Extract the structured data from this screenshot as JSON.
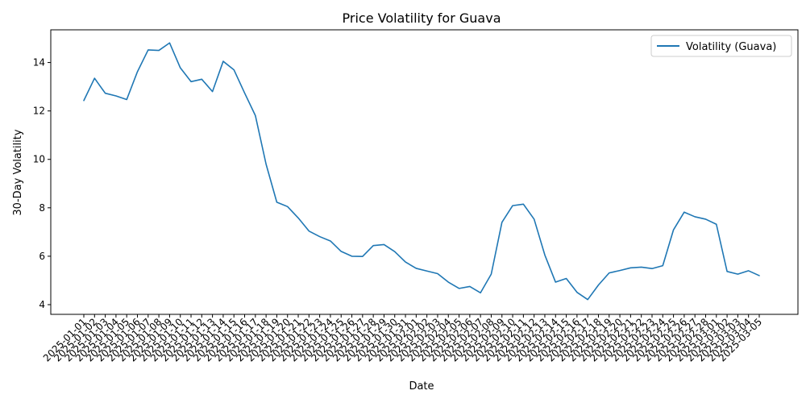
{
  "chart_data": {
    "type": "line",
    "title": "Price Volatility for Guava",
    "xlabel": "Date",
    "ylabel": "30-Day Volatility",
    "ylim": [
      3.6,
      15.35
    ],
    "yticks": [
      4,
      6,
      8,
      10,
      12,
      14
    ],
    "grid": false,
    "legend_position": "top-right",
    "x": [
      "2025-01-01",
      "2025-01-02",
      "2025-01-03",
      "2025-01-04",
      "2025-01-05",
      "2025-01-06",
      "2025-01-07",
      "2025-01-08",
      "2025-01-09",
      "2025-01-10",
      "2025-01-11",
      "2025-01-12",
      "2025-01-13",
      "2025-01-14",
      "2025-01-15",
      "2025-01-16",
      "2025-01-17",
      "2025-01-18",
      "2025-01-19",
      "2025-01-20",
      "2025-01-21",
      "2025-01-22",
      "2025-01-23",
      "2025-01-24",
      "2025-01-25",
      "2025-01-26",
      "2025-01-27",
      "2025-01-28",
      "2025-01-29",
      "2025-01-30",
      "2025-01-31",
      "2025-02-01",
      "2025-02-02",
      "2025-02-03",
      "2025-02-04",
      "2025-02-05",
      "2025-02-06",
      "2025-02-07",
      "2025-02-08",
      "2025-02-09",
      "2025-02-10",
      "2025-02-11",
      "2025-02-12",
      "2025-02-13",
      "2025-02-14",
      "2025-02-15",
      "2025-02-16",
      "2025-02-17",
      "2025-02-18",
      "2025-02-19",
      "2025-02-20",
      "2025-02-21",
      "2025-02-22",
      "2025-02-23",
      "2025-02-24",
      "2025-02-25",
      "2025-02-26",
      "2025-02-27",
      "2025-02-28",
      "2025-03-01",
      "2025-03-02",
      "2025-03-03",
      "2025-03-04",
      "2025-03-05"
    ],
    "series": [
      {
        "name": "Volatility (Guava)",
        "color": "#1f77b4",
        "values": [
          12.43,
          13.35,
          12.73,
          12.62,
          12.47,
          13.62,
          14.52,
          14.5,
          14.81,
          13.78,
          13.21,
          13.31,
          12.8,
          14.05,
          13.7,
          12.74,
          11.81,
          9.8,
          8.23,
          8.05,
          7.58,
          7.04,
          6.81,
          6.63,
          6.2,
          6.0,
          5.99,
          6.44,
          6.48,
          6.19,
          5.76,
          5.5,
          5.39,
          5.28,
          4.93,
          4.67,
          4.75,
          4.49,
          5.26,
          7.4,
          8.09,
          8.15,
          7.53,
          6.05,
          4.93,
          5.08,
          4.51,
          4.21,
          4.81,
          5.31,
          5.41,
          5.52,
          5.55,
          5.49,
          5.61,
          7.09,
          7.82,
          7.63,
          7.53,
          7.32,
          5.37,
          5.26,
          5.4,
          5.2
        ]
      }
    ]
  }
}
